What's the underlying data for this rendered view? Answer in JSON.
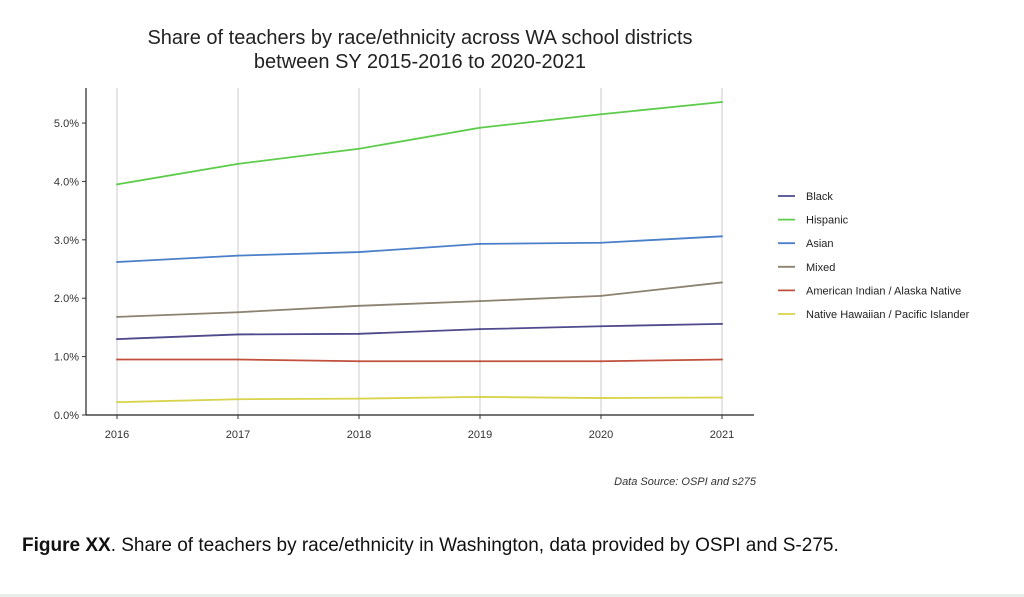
{
  "chart_data": {
    "type": "line",
    "title": "Share of teachers by race/ethnicity across WA school districts between SY 2015-2016 to 2020-2021",
    "title_lines": [
      "Share of teachers by race/ethnicity across WA school districts",
      "between SY 2015-2016 to 2020-2021"
    ],
    "x": [
      2016,
      2017,
      2018,
      2019,
      2020,
      2021
    ],
    "x_tick_labels": [
      "2016",
      "2017",
      "2018",
      "2019",
      "2020",
      "2021"
    ],
    "y_tick_values": [
      0,
      1,
      2,
      3,
      4,
      5
    ],
    "y_tick_labels": [
      "0.0%",
      "1.0%",
      "2.0%",
      "3.0%",
      "4.0%",
      "5.0%"
    ],
    "xlabel": "",
    "ylabel": "",
    "xlim": [
      2016,
      2021
    ],
    "ylim": [
      0,
      5.6
    ],
    "grid": "vertical",
    "legend_position": "right",
    "series": [
      {
        "name": "Black",
        "color": "#4e4a8c",
        "values": [
          1.3,
          1.38,
          1.39,
          1.47,
          1.52,
          1.56
        ]
      },
      {
        "name": "Hispanic",
        "color": "#5dcc4a",
        "values": [
          3.95,
          4.3,
          4.56,
          4.92,
          5.15,
          5.36
        ]
      },
      {
        "name": "Asian",
        "color": "#4a7fc9",
        "values": [
          2.62,
          2.73,
          2.79,
          2.93,
          2.95,
          3.06
        ]
      },
      {
        "name": "Mixed",
        "color": "#8c8270",
        "values": [
          1.68,
          1.76,
          1.87,
          1.95,
          2.04,
          2.27
        ]
      },
      {
        "name": "American Indian / Alaska Native",
        "color": "#c0503c",
        "values": [
          0.95,
          0.95,
          0.92,
          0.92,
          0.92,
          0.95
        ]
      },
      {
        "name": "Native Hawaiian / Pacific Islander",
        "color": "#d8d34a",
        "values": [
          0.22,
          0.27,
          0.28,
          0.31,
          0.29,
          0.3
        ]
      }
    ]
  },
  "source_note": "Data Source: OSPI and s275",
  "caption": {
    "label": "Figure XX",
    "text": ". Share of teachers by race/ethnicity in Washington, data provided by OSPI and S-275."
  }
}
